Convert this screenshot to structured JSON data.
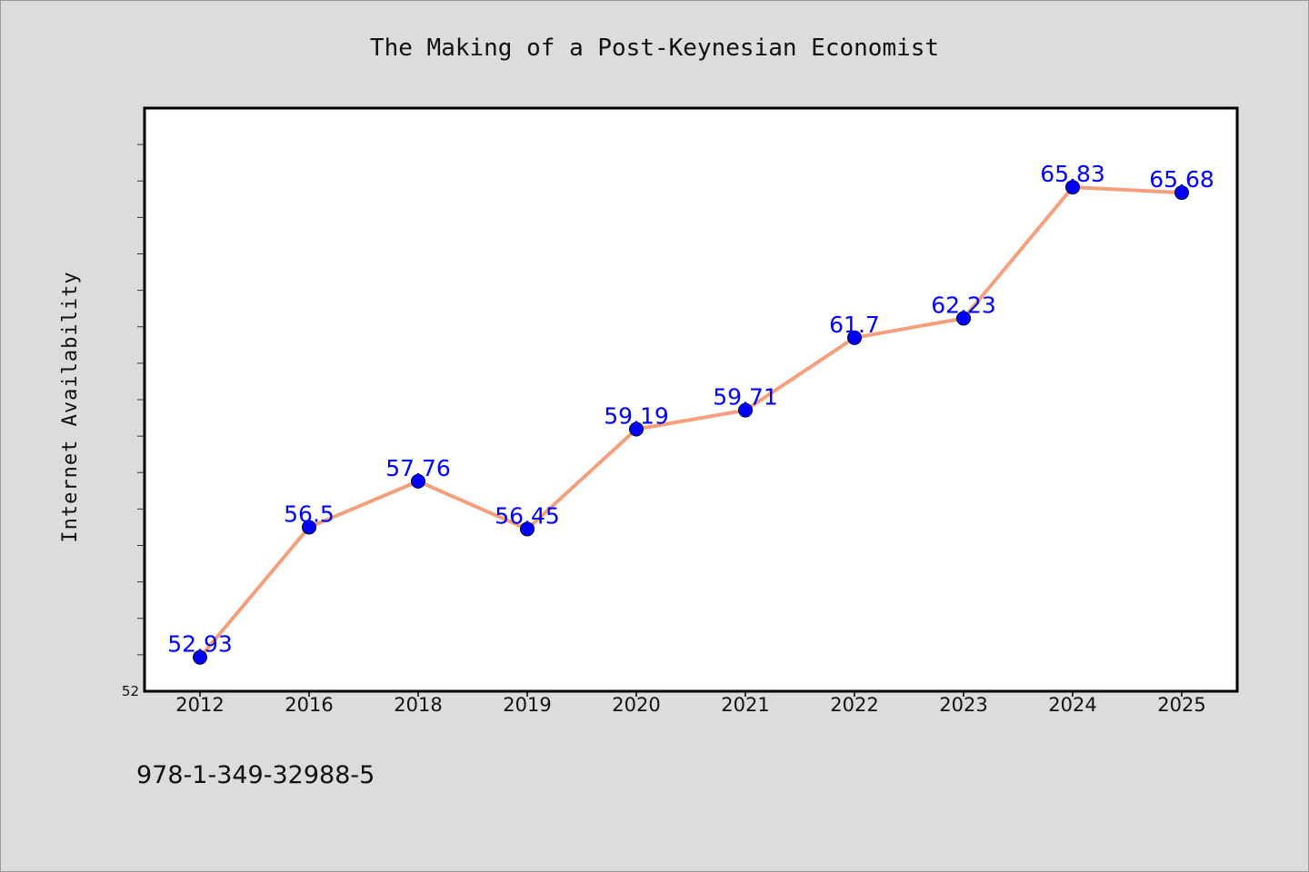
{
  "colors": {
    "background": "#dcdcdc",
    "plot_background": "#ffffff",
    "line": "#f4a07c",
    "marker": "#0000ff",
    "data_label": "#0000ff"
  },
  "footer": {
    "isbn": "978-1-349-32988-5"
  },
  "chart_data": {
    "type": "line",
    "title": "The Making of a Post-Keynesian Economist",
    "xlabel": "",
    "ylabel": "Internet Availability",
    "categories": [
      "2012",
      "2016",
      "2018",
      "2019",
      "2020",
      "2021",
      "2022",
      "2023",
      "2024",
      "2025"
    ],
    "series": [
      {
        "values": [
          52.93,
          56.5,
          57.76,
          56.45,
          59.19,
          59.71,
          61.7,
          62.23,
          65.83,
          65.68
        ]
      }
    ],
    "data_labels": [
      "52.93",
      "56.5",
      "57.76",
      "56.45",
      "59.19",
      "59.71",
      "61.7",
      "62.23",
      "65.83",
      "65.68"
    ],
    "ylim": [
      52,
      68
    ],
    "yticks_labeled": [
      "52"
    ],
    "minor_tick_step": 1,
    "grid": false,
    "legend": "none"
  }
}
